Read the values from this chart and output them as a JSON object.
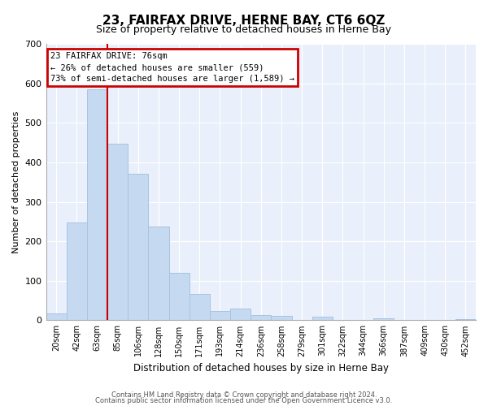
{
  "title": "23, FAIRFAX DRIVE, HERNE BAY, CT6 6QZ",
  "subtitle": "Size of property relative to detached houses in Herne Bay",
  "xlabel": "Distribution of detached houses by size in Herne Bay",
  "ylabel": "Number of detached properties",
  "bar_labels": [
    "20sqm",
    "42sqm",
    "63sqm",
    "85sqm",
    "106sqm",
    "128sqm",
    "150sqm",
    "171sqm",
    "193sqm",
    "214sqm",
    "236sqm",
    "258sqm",
    "279sqm",
    "301sqm",
    "322sqm",
    "344sqm",
    "366sqm",
    "387sqm",
    "409sqm",
    "430sqm",
    "452sqm"
  ],
  "bar_values": [
    18,
    248,
    585,
    448,
    372,
    238,
    120,
    67,
    24,
    30,
    14,
    11,
    0,
    9,
    0,
    0,
    5,
    0,
    0,
    0,
    2
  ],
  "bar_color": "#c5d9f0",
  "bar_edgecolor": "#a8c4e0",
  "marker_line_color": "#cc0000",
  "annotation_line1": "23 FAIRFAX DRIVE: 76sqm",
  "annotation_line2": "← 26% of detached houses are smaller (559)",
  "annotation_line3": "73% of semi-detached houses are larger (1,589) →",
  "annotation_box_color": "#cc0000",
  "ylim": [
    0,
    700
  ],
  "yticks": [
    0,
    100,
    200,
    300,
    400,
    500,
    600,
    700
  ],
  "footer1": "Contains HM Land Registry data © Crown copyright and database right 2024.",
  "footer2": "Contains public sector information licensed under the Open Government Licence v3.0.",
  "bg_color": "#eaf0fb"
}
